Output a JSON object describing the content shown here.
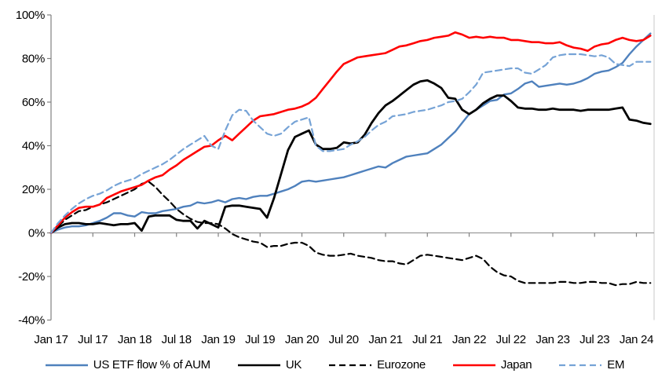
{
  "chart_data": {
    "type": "line",
    "title": "",
    "xlabel": "",
    "ylabel": "",
    "ylim": [
      -40,
      100
    ],
    "grid": false,
    "legend_position": "bottom",
    "x_start": "Jan 2017",
    "x_interval": "monthly",
    "x_tick_labels": [
      "Jan 17",
      "Jul 17",
      "Jan 18",
      "Jul 18",
      "Jan 19",
      "Jul 19",
      "Jan 20",
      "Jul 20",
      "Jan 21",
      "Jul 21",
      "Jan 22",
      "Jul 22",
      "Jan 23",
      "Jul 23",
      "Jan 24"
    ],
    "y_tick_labels": [
      "100%",
      "80%",
      "60%",
      "40%",
      "20%",
      "0%",
      "-20%",
      "-40%"
    ],
    "y_tick_values": [
      100,
      80,
      60,
      40,
      20,
      0,
      -20,
      -40
    ],
    "colors": {
      "axis": "#808080",
      "baseline": "#9a9a9a",
      "plot_border": "#c9c9c9",
      "text": "#000000"
    },
    "series": [
      {
        "name": "US ETF flow % of AUM",
        "color": "#4f81bd",
        "dash": false,
        "width": 2.4,
        "values": [
          0,
          1.5,
          2.5,
          3,
          3,
          3.5,
          4.5,
          5.5,
          7,
          9,
          9,
          8,
          7.5,
          9.5,
          9,
          9,
          10,
          10.5,
          11,
          12,
          12.5,
          14,
          13.5,
          14,
          15,
          14,
          15.5,
          16,
          15.5,
          16.5,
          17,
          17,
          18,
          19,
          20,
          21.5,
          23.5,
          24,
          23.5,
          24,
          24.5,
          25,
          25.5,
          26.5,
          27.5,
          28.5,
          29.5,
          30.5,
          30,
          32,
          33.5,
          35,
          35.5,
          36,
          36.5,
          38.5,
          40.5,
          43.5,
          46.5,
          50.5,
          54.5,
          56.5,
          58.5,
          60.5,
          61,
          63.5,
          64,
          66,
          68.5,
          69.5,
          67,
          67.5,
          68,
          68.5,
          68,
          68.5,
          69.5,
          71,
          73,
          74,
          74.5,
          76,
          78,
          82,
          85.5,
          88.5,
          91.5
        ]
      },
      {
        "name": "UK",
        "color": "#000000",
        "dash": false,
        "width": 2.8,
        "values": [
          0,
          2.5,
          4,
          4.5,
          4.5,
          4,
          4,
          4.5,
          4,
          3.5,
          4,
          4,
          4.5,
          1,
          7.5,
          8,
          8,
          8,
          6,
          5.5,
          5.5,
          2,
          5.5,
          4,
          2.5,
          12,
          12.5,
          12.5,
          12,
          11.5,
          11,
          7,
          16,
          27,
          38,
          44,
          45.5,
          47,
          40.5,
          38.5,
          38.5,
          39,
          41.5,
          41,
          41.5,
          45,
          50.5,
          55,
          58.5,
          60.5,
          63,
          65.5,
          68,
          69.5,
          70,
          68.5,
          66.5,
          62,
          61.5,
          56.5,
          54.5,
          56.5,
          59.5,
          61.5,
          63,
          63,
          60.5,
          57.5,
          57,
          57,
          56.5,
          56.5,
          57,
          56.5,
          56.5,
          56.5,
          56,
          56.5,
          56.5,
          56.5,
          56.5,
          57,
          57.5,
          52,
          51.5,
          50.5,
          50
        ]
      },
      {
        "name": "Eurozone",
        "color": "#000000",
        "dash": true,
        "width": 2.2,
        "values": [
          0,
          3,
          6,
          8,
          10,
          10.5,
          12,
          13,
          14,
          15.5,
          17,
          18.5,
          20,
          22.5,
          23.5,
          21,
          17.5,
          14.5,
          11,
          8.5,
          6.5,
          5,
          4.5,
          4.5,
          4,
          2,
          -0.5,
          -2,
          -3,
          -4,
          -4.5,
          -6.5,
          -6,
          -6,
          -5,
          -4.5,
          -4.5,
          -6,
          -9,
          -10,
          -10.5,
          -10.5,
          -10,
          -9.5,
          -10.5,
          -11,
          -11.5,
          -12.5,
          -13,
          -13,
          -14,
          -14.5,
          -12.5,
          -10.5,
          -10,
          -10.5,
          -11,
          -11.5,
          -12,
          -12.5,
          -11.5,
          -10.5,
          -12,
          -15.5,
          -18,
          -19.5,
          -20,
          -22,
          -23,
          -23,
          -23,
          -23,
          -23,
          -22.5,
          -22.5,
          -23,
          -23,
          -22.5,
          -22.5,
          -23,
          -23,
          -24,
          -23.5,
          -23.5,
          -22.5,
          -23,
          -23
        ]
      },
      {
        "name": "Japan",
        "color": "#ff0000",
        "dash": false,
        "width": 2.6,
        "values": [
          0,
          3.5,
          7,
          9.5,
          11.5,
          12,
          12,
          13,
          16,
          17.5,
          19,
          20,
          21,
          22,
          24,
          25.5,
          26.5,
          29,
          31,
          33.5,
          35.5,
          37.5,
          39.5,
          40,
          42.5,
          44.5,
          42.5,
          45.5,
          48.5,
          51.5,
          53.5,
          54,
          54.5,
          55.5,
          56.5,
          57,
          58,
          59.5,
          62,
          66,
          70,
          74,
          77.5,
          79,
          80.5,
          81,
          81.5,
          82,
          82.5,
          84,
          85.5,
          86,
          87,
          88,
          88.5,
          89.5,
          90,
          90.5,
          92,
          91,
          89.5,
          90,
          89.5,
          90,
          89.5,
          89.5,
          88.5,
          88.5,
          88,
          87.5,
          87.5,
          87,
          87,
          87.5,
          86,
          85,
          84.5,
          83.5,
          85.5,
          86.5,
          87,
          88.5,
          89.5,
          88.5,
          88,
          88.5,
          90.5
        ]
      },
      {
        "name": "EM",
        "color": "#76a3d6",
        "dash": true,
        "width": 2.2,
        "values": [
          0,
          4.5,
          8,
          11,
          13.5,
          15.5,
          17,
          18,
          19.5,
          21.5,
          23,
          24,
          25,
          27,
          28.5,
          30,
          31.5,
          33.5,
          36,
          38.5,
          40.5,
          42.5,
          44.5,
          40,
          38.5,
          47,
          54,
          56.5,
          56,
          51.5,
          48.5,
          45.5,
          44.5,
          45.5,
          48.5,
          51,
          52,
          53,
          40,
          37.5,
          37.5,
          38,
          38.5,
          40.5,
          42,
          44,
          47,
          49.5,
          51,
          53.5,
          54,
          54.5,
          55.5,
          56,
          56.5,
          57.5,
          58.5,
          60,
          60.5,
          61.5,
          64.5,
          68,
          73.5,
          74,
          74.5,
          75,
          75.5,
          75.5,
          73.5,
          73,
          75,
          77,
          80.5,
          81.5,
          82,
          82,
          82,
          81.5,
          81,
          81.5,
          80.5,
          77.5,
          77,
          76.5,
          78.5,
          78.5,
          78.5
        ]
      }
    ]
  }
}
